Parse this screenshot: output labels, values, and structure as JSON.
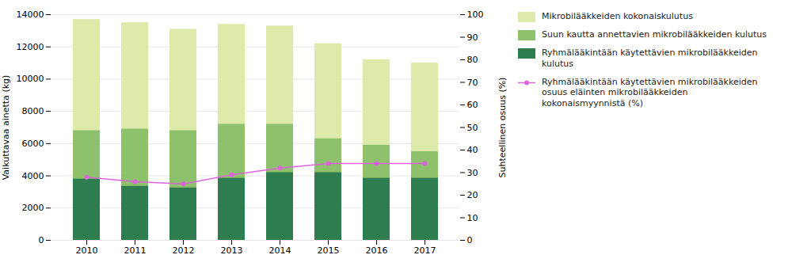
{
  "chart_data": {
    "type": "bar",
    "categories": [
      "2010",
      "2011",
      "2012",
      "2013",
      "2014",
      "2015",
      "2016",
      "2017"
    ],
    "ylabel": "Vaikuttavaa ainetta (kg)",
    "y2label": "Suhteellinen osuus (%)",
    "ylim": [
      0,
      14000
    ],
    "yticks": [
      0,
      2000,
      4000,
      6000,
      8000,
      10000,
      12000,
      14000
    ],
    "y2lim": [
      0,
      100
    ],
    "y2ticks": [
      0,
      10,
      20,
      30,
      40,
      50,
      60,
      70,
      80,
      90,
      100
    ],
    "grid": true,
    "legend": "right",
    "stacked": false,
    "series": [
      {
        "name": "Mikrobilääkkeiden kokonaiskulutus",
        "type": "bar",
        "color": "#ddeaaa",
        "values": [
          13700,
          13500,
          13100,
          13400,
          13300,
          12200,
          11200,
          11000
        ]
      },
      {
        "name": "Suun kautta annettavien mikrobilääkkeiden kulutus",
        "type": "bar",
        "color": "#8ec16b",
        "values": [
          6800,
          6900,
          6800,
          7200,
          7200,
          6300,
          5900,
          5500
        ]
      },
      {
        "name": "Ryhmälääkintään käytettävien mikrobilääkkeiden\nkulutus",
        "type": "bar",
        "color": "#2e7d4f",
        "values": [
          3800,
          3350,
          3250,
          3850,
          4200,
          4200,
          3850,
          3850
        ]
      },
      {
        "name": "Ryhmälääkintään käytettävien mikrobilääkkeiden\nosuus eläinten mikrobilääkkeiden\nkokonaismyynnistä (%)",
        "type": "line",
        "axis": "y2",
        "color": "#dd66dd",
        "marker": "circle",
        "values": [
          28,
          26,
          25,
          29,
          32,
          34,
          34,
          34
        ]
      }
    ]
  }
}
